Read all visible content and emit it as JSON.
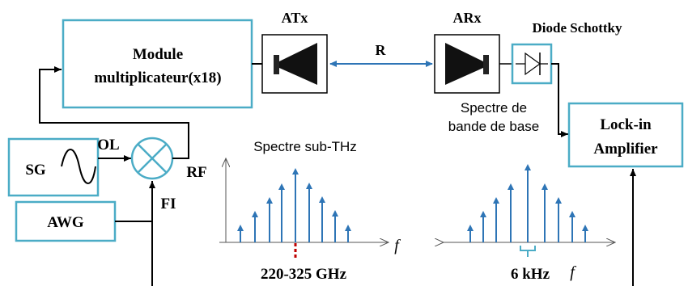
{
  "blocks": {
    "module": {
      "line1": "Module",
      "line2": "multiplicateur(x18)"
    },
    "atx": "ATx",
    "arx": "ARx",
    "diode": "Diode Schottky",
    "lockin": {
      "line1": "Lock-in",
      "line2": "Amplifier"
    },
    "sg": "SG",
    "awg": "AWG"
  },
  "signals": {
    "ol": "OL",
    "rf": "RF",
    "fi": "FI",
    "r": "R"
  },
  "spectra": {
    "subthz_title": "Spectre sub-THz",
    "subthz_band": "220-325 GHz",
    "baseband_title_line1": "Spectre de",
    "baseband_title_line2": "bande de base",
    "baseband_spacing": "6 kHz",
    "freq_symbol": "f"
  },
  "colors": {
    "block_border": "#4BACC6",
    "arrow_blue": "#2E75B6",
    "spectrum_blue": "#2E75B6",
    "marker_red": "#C00000",
    "line": "#000000"
  }
}
